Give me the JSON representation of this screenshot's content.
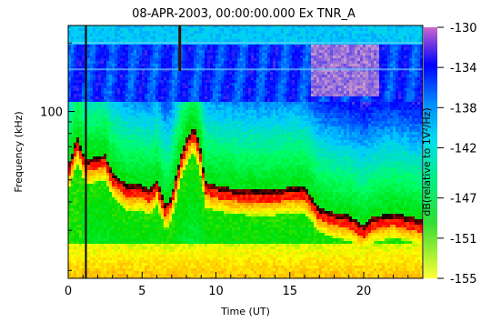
{
  "chart_data": {
    "type": "heatmap",
    "title": "08-APR-2003, 00:00:00.000  Ex TNR_A",
    "xlabel": "Time (UT)",
    "ylabel": "Frequency (kHz)",
    "colorbar_label": "dB(relative to 1V²/Hz)",
    "xlim": [
      0,
      24
    ],
    "x_ticks": [
      0,
      5,
      10,
      15,
      20
    ],
    "x_tick_labels": [
      "0",
      "5",
      "10",
      "15",
      "20"
    ],
    "y_scale": "log",
    "y_ticks": [
      100
    ],
    "y_tick_labels": [
      "100"
    ],
    "colorbar_range": [
      -155,
      -130
    ],
    "colorbar_ticks": [
      -130,
      -134,
      -138,
      -142,
      -147,
      -151,
      -155
    ],
    "colorbar_tick_labels": [
      "-130",
      "-134",
      "-138",
      "-142",
      "-147",
      "-151",
      "-155"
    ],
    "colorscale": [
      "#0000ff",
      "#00aaff",
      "#00ffaa",
      "#00ff00",
      "#ffff00",
      "#ff8800",
      "#ff0000",
      "#000000"
    ],
    "colorscale_stops": [
      "#cc99cc",
      "#0000ff",
      "#00ccff",
      "#00ff66",
      "#00dd00",
      "#ffff00",
      "#ff8800",
      "#ff0000",
      "#000000"
    ],
    "grid": false,
    "legend": "colorbar-right"
  }
}
